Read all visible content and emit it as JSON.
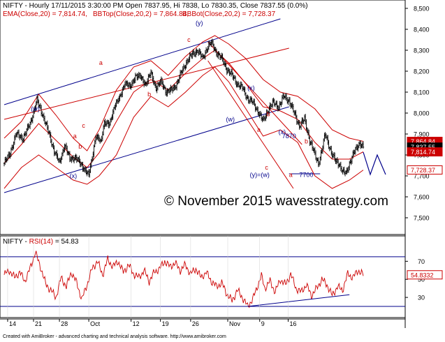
{
  "header": {
    "line1": "NIFTY - Hourly 17/11/2015 3:30:00 PM Open 7837.95, Hi 7838, Lo 7830.35, Close 7837.55 (0.0%)",
    "ema": "EMA(Close,20) = 7,814.74,",
    "bbtop": "BBTop(Close,20,2) = 7,864.84,",
    "bbbot": "BBBot(Close,20,2) = 7,728.37"
  },
  "watermark": "© November 2015 wavesstrategy.com",
  "rsi_header": {
    "prefix": "NIFTY - ",
    "label": "RSI(14)",
    "value": " = 54.83"
  },
  "footer": "Created with AmiBroker - advanced charting and technical analysis software. http://www.amibroker.com",
  "colors": {
    "price": "#000000",
    "bb": "#cc0000",
    "channel": "#00008b",
    "rsi": "#cc0000",
    "ema_badge": "#cc0000",
    "bbtop_badge": "#cc0000",
    "close_badge": "#000000"
  },
  "chart_data": [
    {
      "type": "candlestick",
      "title": "NIFTY - Hourly",
      "ylim": [
        7440,
        8520
      ],
      "y_ticks": [
        "8,500",
        "8,400",
        "8,300",
        "8,200",
        "8,100",
        "8,000",
        "7,900",
        "7,800",
        "7,700",
        "7,600",
        "7,500"
      ],
      "x_ticks": [
        "14",
        "21",
        "28",
        "Oct",
        "12",
        "19",
        "26",
        "Nov",
        "9",
        "16"
      ],
      "close_path": [
        {
          "i": 0,
          "v": 7760
        },
        {
          "i": 6,
          "v": 7800
        },
        {
          "i": 14,
          "v": 7900
        },
        {
          "i": 22,
          "v": 7880
        },
        {
          "i": 30,
          "v": 7950
        },
        {
          "i": 38,
          "v": 8060
        },
        {
          "i": 44,
          "v": 8000
        },
        {
          "i": 52,
          "v": 7900
        },
        {
          "i": 58,
          "v": 7820
        },
        {
          "i": 64,
          "v": 7760
        },
        {
          "i": 70,
          "v": 7850
        },
        {
          "i": 76,
          "v": 7780
        },
        {
          "i": 82,
          "v": 7790
        },
        {
          "i": 88,
          "v": 7760
        },
        {
          "i": 92,
          "v": 7740
        },
        {
          "i": 98,
          "v": 7700
        },
        {
          "i": 102,
          "v": 7790
        },
        {
          "i": 106,
          "v": 7890
        },
        {
          "i": 112,
          "v": 7860
        },
        {
          "i": 116,
          "v": 7960
        },
        {
          "i": 122,
          "v": 7940
        },
        {
          "i": 128,
          "v": 8040
        },
        {
          "i": 134,
          "v": 8070
        },
        {
          "i": 140,
          "v": 8150
        },
        {
          "i": 146,
          "v": 8120
        },
        {
          "i": 152,
          "v": 8180
        },
        {
          "i": 158,
          "v": 8170
        },
        {
          "i": 164,
          "v": 8140
        },
        {
          "i": 170,
          "v": 8190
        },
        {
          "i": 176,
          "v": 8120
        },
        {
          "i": 182,
          "v": 8150
        },
        {
          "i": 188,
          "v": 8100
        },
        {
          "i": 194,
          "v": 8110
        },
        {
          "i": 200,
          "v": 8140
        },
        {
          "i": 206,
          "v": 8200
        },
        {
          "i": 212,
          "v": 8250
        },
        {
          "i": 218,
          "v": 8280
        },
        {
          "i": 224,
          "v": 8300
        },
        {
          "i": 230,
          "v": 8260
        },
        {
          "i": 236,
          "v": 8320
        },
        {
          "i": 240,
          "v": 8335
        },
        {
          "i": 246,
          "v": 8290
        },
        {
          "i": 252,
          "v": 8260
        },
        {
          "i": 258,
          "v": 8210
        },
        {
          "i": 264,
          "v": 8180
        },
        {
          "i": 270,
          "v": 8140
        },
        {
          "i": 276,
          "v": 8120
        },
        {
          "i": 282,
          "v": 8070
        },
        {
          "i": 288,
          "v": 8050
        },
        {
          "i": 294,
          "v": 8010
        },
        {
          "i": 300,
          "v": 7960
        },
        {
          "i": 306,
          "v": 8020
        },
        {
          "i": 312,
          "v": 8050
        },
        {
          "i": 318,
          "v": 8030
        },
        {
          "i": 324,
          "v": 8080
        },
        {
          "i": 330,
          "v": 8060
        },
        {
          "i": 336,
          "v": 8000
        },
        {
          "i": 342,
          "v": 7940
        },
        {
          "i": 348,
          "v": 7970
        },
        {
          "i": 354,
          "v": 7870
        },
        {
          "i": 360,
          "v": 7800
        },
        {
          "i": 364,
          "v": 7760
        },
        {
          "i": 368,
          "v": 7820
        },
        {
          "i": 372,
          "v": 7900
        },
        {
          "i": 376,
          "v": 7850
        },
        {
          "i": 380,
          "v": 7800
        },
        {
          "i": 384,
          "v": 7770
        },
        {
          "i": 388,
          "v": 7760
        },
        {
          "i": 392,
          "v": 7720
        },
        {
          "i": 396,
          "v": 7710
        },
        {
          "i": 400,
          "v": 7760
        },
        {
          "i": 404,
          "v": 7800
        },
        {
          "i": 408,
          "v": 7830
        },
        {
          "i": 412,
          "v": 7860
        },
        {
          "i": 416,
          "v": 7837
        }
      ],
      "bb_upper": [
        {
          "i": 0,
          "v": 7880
        },
        {
          "i": 20,
          "v": 7960
        },
        {
          "i": 40,
          "v": 8090
        },
        {
          "i": 60,
          "v": 7990
        },
        {
          "i": 80,
          "v": 7880
        },
        {
          "i": 96,
          "v": 7820
        },
        {
          "i": 110,
          "v": 7920
        },
        {
          "i": 130,
          "v": 8110
        },
        {
          "i": 150,
          "v": 8220
        },
        {
          "i": 170,
          "v": 8250
        },
        {
          "i": 190,
          "v": 8180
        },
        {
          "i": 210,
          "v": 8270
        },
        {
          "i": 230,
          "v": 8340
        },
        {
          "i": 244,
          "v": 8370
        },
        {
          "i": 260,
          "v": 8330
        },
        {
          "i": 280,
          "v": 8260
        },
        {
          "i": 300,
          "v": 8160
        },
        {
          "i": 320,
          "v": 8100
        },
        {
          "i": 340,
          "v": 8080
        },
        {
          "i": 360,
          "v": 8020
        },
        {
          "i": 380,
          "v": 7920
        },
        {
          "i": 400,
          "v": 7880
        },
        {
          "i": 416,
          "v": 7865
        }
      ],
      "bb_lower": [
        {
          "i": 0,
          "v": 7640
        },
        {
          "i": 20,
          "v": 7740
        },
        {
          "i": 40,
          "v": 7800
        },
        {
          "i": 60,
          "v": 7740
        },
        {
          "i": 80,
          "v": 7680
        },
        {
          "i": 96,
          "v": 7660
        },
        {
          "i": 110,
          "v": 7700
        },
        {
          "i": 130,
          "v": 7800
        },
        {
          "i": 150,
          "v": 7980
        },
        {
          "i": 170,
          "v": 8080
        },
        {
          "i": 190,
          "v": 8030
        },
        {
          "i": 210,
          "v": 8100
        },
        {
          "i": 230,
          "v": 8180
        },
        {
          "i": 244,
          "v": 8220
        },
        {
          "i": 260,
          "v": 8150
        },
        {
          "i": 280,
          "v": 8020
        },
        {
          "i": 300,
          "v": 7890
        },
        {
          "i": 320,
          "v": 7920
        },
        {
          "i": 340,
          "v": 7860
        },
        {
          "i": 360,
          "v": 7700
        },
        {
          "i": 380,
          "v": 7640
        },
        {
          "i": 400,
          "v": 7680
        },
        {
          "i": 416,
          "v": 7728
        }
      ],
      "ema": [
        {
          "i": 0,
          "v": 7760
        },
        {
          "i": 20,
          "v": 7850
        },
        {
          "i": 40,
          "v": 7950
        },
        {
          "i": 60,
          "v": 7870
        },
        {
          "i": 80,
          "v": 7790
        },
        {
          "i": 96,
          "v": 7740
        },
        {
          "i": 110,
          "v": 7810
        },
        {
          "i": 130,
          "v": 7960
        },
        {
          "i": 150,
          "v": 8100
        },
        {
          "i": 170,
          "v": 8160
        },
        {
          "i": 190,
          "v": 8110
        },
        {
          "i": 210,
          "v": 8190
        },
        {
          "i": 230,
          "v": 8260
        },
        {
          "i": 244,
          "v": 8300
        },
        {
          "i": 260,
          "v": 8240
        },
        {
          "i": 280,
          "v": 8140
        },
        {
          "i": 300,
          "v": 8030
        },
        {
          "i": 320,
          "v": 8010
        },
        {
          "i": 340,
          "v": 7970
        },
        {
          "i": 360,
          "v": 7860
        },
        {
          "i": 380,
          "v": 7780
        },
        {
          "i": 400,
          "v": 7780
        },
        {
          "i": 416,
          "v": 7815
        }
      ],
      "badges": [
        {
          "label": "7,864.84",
          "v": 7864.84,
          "kind": "bbtop"
        },
        {
          "label": "7,837.55",
          "v": 7837.55,
          "kind": "close"
        },
        {
          "label": "7,814.74",
          "v": 7814.74,
          "kind": "ema"
        },
        {
          "label": "7,728.37",
          "v": 7728.37,
          "kind": "bbbot"
        }
      ],
      "wave_labels": [
        {
          "text": "(w)",
          "i": 36,
          "v": 8010,
          "color": "#00008b"
        },
        {
          "text": "a",
          "i": 82,
          "v": 7880,
          "color": "#cc0000"
        },
        {
          "text": "c",
          "i": 92,
          "v": 7930,
          "color": "#cc0000"
        },
        {
          "text": "b",
          "i": 88,
          "v": 7830,
          "color": "#cc0000"
        },
        {
          "text": "(x)",
          "i": 80,
          "v": 7690,
          "color": "#00008b"
        },
        {
          "text": "a",
          "i": 112,
          "v": 8230,
          "color": "#cc0000"
        },
        {
          "text": "b",
          "i": 168,
          "v": 8080,
          "color": "#cc0000"
        },
        {
          "text": "c",
          "i": 214,
          "v": 8340,
          "color": "#cc0000"
        },
        {
          "text": "(y)",
          "i": 226,
          "v": 8420,
          "color": "#00008b"
        },
        {
          "text": "(w)",
          "i": 262,
          "v": 7960,
          "color": "#00008b"
        },
        {
          "text": "(x)",
          "i": 286,
          "v": 8110,
          "color": "#00008b"
        },
        {
          "text": "a",
          "i": 295,
          "v": 7910,
          "color": "#cc0000"
        },
        {
          "text": "b",
          "i": 306,
          "v": 7985,
          "color": "#cc0000"
        },
        {
          "text": "(x)",
          "i": 322,
          "v": 7900,
          "color": "#00008b"
        },
        {
          "text": "7870",
          "i": 330,
          "v": 7880,
          "color": "#00008b"
        },
        {
          "text": "c",
          "i": 304,
          "v": 7730,
          "color": "#cc0000"
        },
        {
          "text": "(y)=(w)",
          "i": 296,
          "v": 7695,
          "color": "#00008b"
        },
        {
          "text": "a",
          "i": 332,
          "v": 7695,
          "color": "#cc0000"
        },
        {
          "text": "b",
          "i": 350,
          "v": 7855,
          "color": "#cc0000"
        },
        {
          "text": "7700",
          "i": 350,
          "v": 7695,
          "color": "#00008b"
        }
      ],
      "trendlines": [
        {
          "name": "channel-top",
          "i1": 0,
          "v1": 8040,
          "i2": 320,
          "v2": 8450,
          "color": "#00008b"
        },
        {
          "name": "channel-bottom",
          "i1": 0,
          "v1": 7620,
          "i2": 330,
          "v2": 8030,
          "color": "#00008b"
        },
        {
          "name": "red-upper",
          "i1": 0,
          "v1": 7970,
          "i2": 330,
          "v2": 8310,
          "color": "#cc0000"
        },
        {
          "name": "downtrend-upper",
          "i1": 236,
          "v1": 8340,
          "i2": 345,
          "v2": 7850,
          "color": "#cc0000"
        },
        {
          "name": "downtrend-lower",
          "i1": 236,
          "v1": 8250,
          "i2": 335,
          "v2": 7640,
          "color": "#cc0000"
        },
        {
          "name": "support-7700",
          "i1": 330,
          "v1": 7710,
          "i2": 366,
          "v2": 7710,
          "color": "#00008b"
        }
      ]
    },
    {
      "type": "line",
      "title": "RSI(14)",
      "ylim": [
        10,
        95
      ],
      "y_ticks": [
        "70",
        "50",
        "30"
      ],
      "levels": [
        75,
        20
      ],
      "last_value_label": "54.8332",
      "path": [
        {
          "i": 0,
          "v": 55
        },
        {
          "i": 6,
          "v": 60
        },
        {
          "i": 12,
          "v": 52
        },
        {
          "i": 18,
          "v": 58
        },
        {
          "i": 24,
          "v": 48
        },
        {
          "i": 30,
          "v": 62
        },
        {
          "i": 36,
          "v": 80
        },
        {
          "i": 42,
          "v": 64
        },
        {
          "i": 48,
          "v": 45
        },
        {
          "i": 54,
          "v": 38
        },
        {
          "i": 60,
          "v": 30
        },
        {
          "i": 66,
          "v": 52
        },
        {
          "i": 72,
          "v": 42
        },
        {
          "i": 78,
          "v": 58
        },
        {
          "i": 84,
          "v": 46
        },
        {
          "i": 90,
          "v": 28
        },
        {
          "i": 96,
          "v": 44
        },
        {
          "i": 102,
          "v": 62
        },
        {
          "i": 108,
          "v": 70
        },
        {
          "i": 114,
          "v": 55
        },
        {
          "i": 120,
          "v": 72
        },
        {
          "i": 126,
          "v": 64
        },
        {
          "i": 132,
          "v": 70
        },
        {
          "i": 138,
          "v": 58
        },
        {
          "i": 144,
          "v": 66
        },
        {
          "i": 150,
          "v": 56
        },
        {
          "i": 156,
          "v": 52
        },
        {
          "i": 162,
          "v": 60
        },
        {
          "i": 168,
          "v": 48
        },
        {
          "i": 174,
          "v": 58
        },
        {
          "i": 180,
          "v": 62
        },
        {
          "i": 186,
          "v": 70
        },
        {
          "i": 192,
          "v": 64
        },
        {
          "i": 198,
          "v": 68
        },
        {
          "i": 204,
          "v": 60
        },
        {
          "i": 210,
          "v": 66
        },
        {
          "i": 216,
          "v": 56
        },
        {
          "i": 222,
          "v": 62
        },
        {
          "i": 228,
          "v": 52
        },
        {
          "i": 234,
          "v": 58
        },
        {
          "i": 240,
          "v": 48
        },
        {
          "i": 246,
          "v": 42
        },
        {
          "i": 252,
          "v": 46
        },
        {
          "i": 258,
          "v": 34
        },
        {
          "i": 264,
          "v": 26
        },
        {
          "i": 270,
          "v": 38
        },
        {
          "i": 276,
          "v": 30
        },
        {
          "i": 282,
          "v": 20
        },
        {
          "i": 288,
          "v": 28
        },
        {
          "i": 294,
          "v": 44
        },
        {
          "i": 298,
          "v": 54
        },
        {
          "i": 302,
          "v": 40
        },
        {
          "i": 308,
          "v": 48
        },
        {
          "i": 314,
          "v": 36
        },
        {
          "i": 320,
          "v": 50
        },
        {
          "i": 326,
          "v": 44
        },
        {
          "i": 332,
          "v": 56
        },
        {
          "i": 338,
          "v": 40
        },
        {
          "i": 344,
          "v": 36
        },
        {
          "i": 350,
          "v": 44
        },
        {
          "i": 356,
          "v": 32
        },
        {
          "i": 362,
          "v": 40
        },
        {
          "i": 368,
          "v": 50
        },
        {
          "i": 374,
          "v": 44
        },
        {
          "i": 380,
          "v": 32
        },
        {
          "i": 386,
          "v": 42
        },
        {
          "i": 392,
          "v": 38
        },
        {
          "i": 398,
          "v": 56
        },
        {
          "i": 404,
          "v": 52
        },
        {
          "i": 410,
          "v": 60
        },
        {
          "i": 416,
          "v": 55
        }
      ],
      "trendline": {
        "i1": 282,
        "v1": 20,
        "i2": 400,
        "v2": 33
      }
    }
  ],
  "x_tick_positions": [
    {
      "label": "14",
      "i": 4
    },
    {
      "label": "21",
      "i": 34
    },
    {
      "label": "28",
      "i": 64
    },
    {
      "label": "Oct",
      "i": 98
    },
    {
      "label": "12",
      "i": 147
    },
    {
      "label": "19",
      "i": 181
    },
    {
      "label": "26",
      "i": 216
    },
    {
      "label": "Nov",
      "i": 259
    },
    {
      "label": "9",
      "i": 296
    },
    {
      "label": "16",
      "i": 329
    }
  ]
}
